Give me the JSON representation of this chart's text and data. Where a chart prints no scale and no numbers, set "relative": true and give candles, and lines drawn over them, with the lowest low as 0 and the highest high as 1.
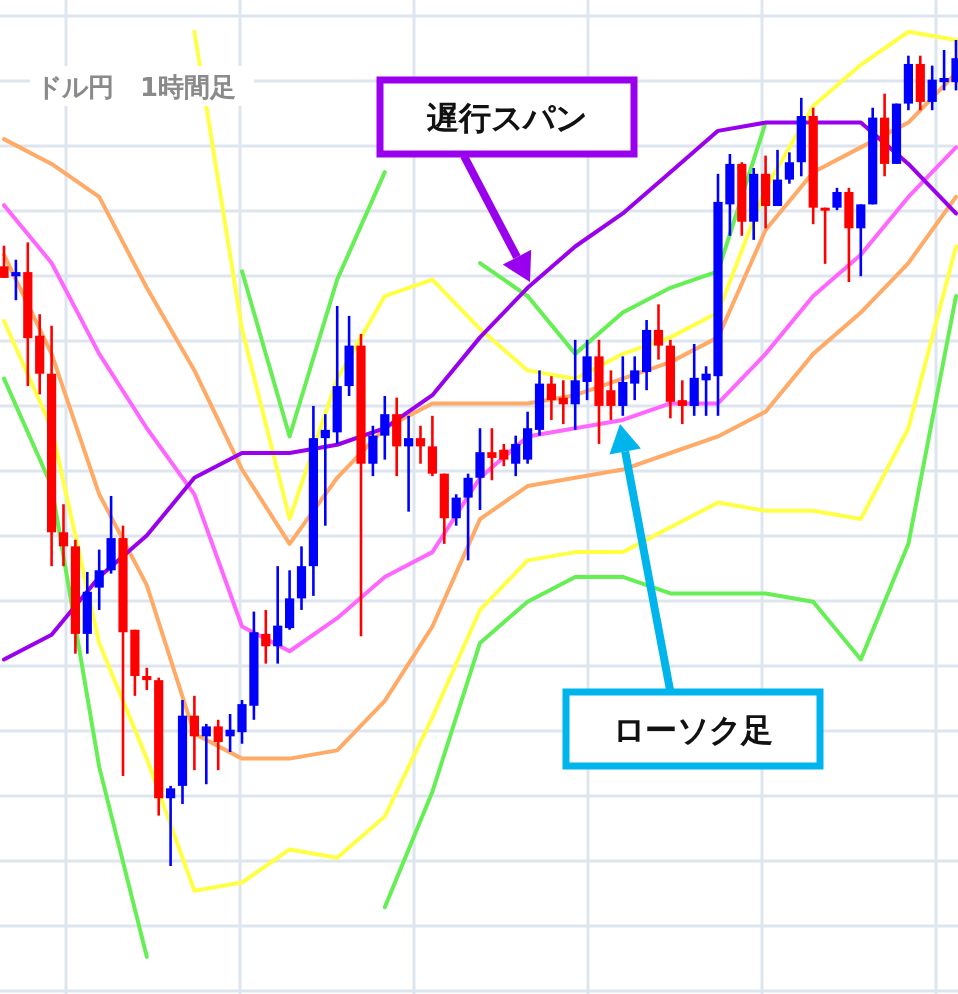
{
  "chart_data": {
    "type": "candlestick",
    "title": "ドル円　1時間足",
    "relative": true,
    "grid": true,
    "annotations": [
      "遅行スパン",
      "ローソク足"
    ],
    "categories": [
      null,
      null,
      null,
      null,
      null,
      null,
      null,
      null,
      null,
      null,
      null,
      null,
      null,
      null,
      null,
      null,
      null,
      null,
      null,
      null,
      null,
      null,
      null,
      null,
      null,
      null,
      null,
      null,
      null,
      null,
      null,
      null,
      null,
      null,
      null,
      null,
      null,
      null,
      null,
      null,
      null,
      null,
      null,
      null,
      null,
      null,
      null,
      null,
      null,
      null,
      null,
      null,
      null,
      null,
      null,
      null,
      null,
      null,
      null,
      null,
      null,
      null,
      null,
      null,
      null,
      null,
      null,
      null,
      null,
      null,
      null,
      null,
      null,
      null,
      null,
      null,
      null,
      null,
      null,
      null,
      null
    ],
    "ohlc": [
      [
        0.726,
        0.751,
        0.712,
        0.712
      ],
      [
        0.714,
        0.734,
        0.685,
        0.719
      ],
      [
        0.719,
        0.755,
        0.581,
        0.639
      ],
      [
        0.642,
        0.668,
        0.571,
        0.596
      ],
      [
        0.596,
        0.654,
        0.363,
        0.404
      ],
      [
        0.404,
        0.438,
        0.363,
        0.387
      ],
      [
        0.387,
        0.395,
        0.257,
        0.281
      ],
      [
        0.281,
        0.356,
        0.257,
        0.332
      ],
      [
        0.337,
        0.383,
        0.31,
        0.358
      ],
      [
        0.358,
        0.448,
        0.354,
        0.397
      ],
      [
        0.397,
        0.412,
        0.109,
        0.283
      ],
      [
        0.286,
        0.286,
        0.206,
        0.23
      ],
      [
        0.23,
        0.24,
        0.213,
        0.225
      ],
      [
        0.225,
        0.228,
        0.061,
        0.082
      ],
      [
        0.082,
        0.097,
        0,
        0.094
      ],
      [
        0.097,
        0.201,
        0.075,
        0.182
      ],
      [
        0.182,
        0.206,
        0.116,
        0.157
      ],
      [
        0.157,
        0.172,
        0.099,
        0.169
      ],
      [
        0.169,
        0.177,
        0.116,
        0.15
      ],
      [
        0.157,
        0.184,
        0.138,
        0.165
      ],
      [
        0.162,
        0.201,
        0.148,
        0.196
      ],
      [
        0.194,
        0.308,
        0.177,
        0.283
      ],
      [
        0.281,
        0.31,
        0.245,
        0.266
      ],
      [
        0.266,
        0.363,
        0.245,
        0.291
      ],
      [
        0.288,
        0.358,
        0.286,
        0.324
      ],
      [
        0.324,
        0.387,
        0.31,
        0.363
      ],
      [
        0.363,
        0.557,
        0.327,
        0.518
      ],
      [
        0.518,
        0.547,
        0.412,
        0.528
      ],
      [
        0.525,
        0.678,
        0.511,
        0.581
      ],
      [
        0.581,
        0.666,
        0.569,
        0.63
      ],
      [
        0.63,
        0.644,
        0.278,
        0.487
      ],
      [
        0.487,
        0.533,
        0.472,
        0.521
      ],
      [
        0.521,
        0.569,
        0.492,
        0.547
      ],
      [
        0.547,
        0.567,
        0.472,
        0.508
      ],
      [
        0.508,
        0.545,
        0.429,
        0.518
      ],
      [
        0.518,
        0.533,
        0.487,
        0.508
      ],
      [
        0.508,
        0.545,
        0.472,
        0.475
      ],
      [
        0.475,
        0.475,
        0.39,
        0.421
      ],
      [
        0.421,
        0.45,
        0.412,
        0.446
      ],
      [
        0.446,
        0.475,
        0.37,
        0.47
      ],
      [
        0.47,
        0.53,
        0.431,
        0.501
      ],
      [
        0.501,
        0.53,
        0.467,
        0.494
      ],
      [
        0.504,
        0.511,
        0.484,
        0.492
      ],
      [
        0.487,
        0.521,
        0.472,
        0.511
      ],
      [
        0.492,
        0.55,
        0.487,
        0.53
      ],
      [
        0.528,
        0.6,
        0.521,
        0.584
      ],
      [
        0.584,
        0.593,
        0.54,
        0.564
      ],
      [
        0.567,
        0.588,
        0.535,
        0.559
      ],
      [
        0.559,
        0.637,
        0.528,
        0.588
      ],
      [
        0.586,
        0.637,
        0.564,
        0.617
      ],
      [
        0.617,
        0.637,
        0.511,
        0.557
      ],
      [
        0.576,
        0.6,
        0.54,
        0.557
      ],
      [
        0.557,
        0.617,
        0.545,
        0.586
      ],
      [
        0.584,
        0.617,
        0.564,
        0.6
      ],
      [
        0.598,
        0.661,
        0.576,
        0.649
      ],
      [
        0.649,
        0.68,
        0.613,
        0.63
      ],
      [
        0.63,
        0.637,
        0.542,
        0.562
      ],
      [
        0.564,
        0.588,
        0.535,
        0.557
      ],
      [
        0.557,
        0.632,
        0.545,
        0.591
      ],
      [
        0.588,
        0.605,
        0.545,
        0.596
      ],
      [
        0.593,
        0.838,
        0.545,
        0.804
      ],
      [
        0.801,
        0.862,
        0.763,
        0.85
      ],
      [
        0.85,
        0.852,
        0.763,
        0.78
      ],
      [
        0.78,
        0.845,
        0.758,
        0.838
      ],
      [
        0.838,
        0.86,
        0.772,
        0.799
      ],
      [
        0.799,
        0.867,
        0.799,
        0.831
      ],
      [
        0.831,
        0.864,
        0.826,
        0.852
      ],
      [
        0.852,
        0.93,
        0.835,
        0.908
      ],
      [
        0.908,
        0.918,
        0.777,
        0.797
      ],
      [
        0.797,
        0.797,
        0.729,
        0.794
      ],
      [
        0.797,
        0.821,
        0.794,
        0.816
      ],
      [
        0.816,
        0.821,
        0.707,
        0.772
      ],
      [
        0.772,
        0.801,
        0.714,
        0.801
      ],
      [
        0.801,
        0.918,
        0.801,
        0.906
      ],
      [
        0.906,
        0.935,
        0.835,
        0.85
      ],
      [
        0.85,
        0.923,
        0.85,
        0.923
      ],
      [
        0.923,
        0.981,
        0.915,
        0.971
      ],
      [
        0.971,
        0.981,
        0.915,
        0.925
      ],
      [
        0.925,
        0.969,
        0.915,
        0.952
      ],
      [
        0.949,
        0.988,
        0.939,
        0.954
      ],
      [
        0.949,
        1,
        0.939,
        0.978
      ]
    ],
    "colors": [
      "#ff0000",
      "#0000ff",
      "#ff0000",
      "#ff0000",
      "#ff0000",
      "#ff0000",
      "#ff0000",
      "#0000ff",
      "#0000ff",
      "#0000ff",
      "#ff0000",
      "#ff0000",
      "#ff0000",
      "#ff0000",
      "#0000ff",
      "#0000ff",
      "#ff0000",
      "#0000ff",
      "#ff0000",
      "#0000ff",
      "#0000ff",
      "#0000ff",
      "#ff0000",
      "#0000ff",
      "#0000ff",
      "#0000ff",
      "#0000ff",
      "#0000ff",
      "#0000ff",
      "#0000ff",
      "#ff0000",
      "#0000ff",
      "#0000ff",
      "#ff0000",
      "#0000ff",
      "#ff0000",
      "#ff0000",
      "#ff0000",
      "#0000ff",
      "#0000ff",
      "#0000ff",
      "#ff0000",
      "#ff0000",
      "#0000ff",
      "#0000ff",
      "#0000ff",
      "#ff0000",
      "#ff0000",
      "#0000ff",
      "#0000ff",
      "#ff0000",
      "#ff0000",
      "#0000ff",
      "#0000ff",
      "#0000ff",
      "#ff0000",
      "#ff0000",
      "#ff0000",
      "#0000ff",
      "#0000ff",
      "#0000ff",
      "#0000ff",
      "#ff0000",
      "#0000ff",
      "#ff0000",
      "#0000ff",
      "#0000ff",
      "#0000ff",
      "#ff0000",
      "#ff0000",
      "#0000ff",
      "#ff0000",
      "#0000ff",
      "#0000ff",
      "#ff0000",
      "#0000ff",
      "#0000ff",
      "#ff0000",
      "#0000ff",
      "#0000ff",
      "#0000ff"
    ],
    "series": [
      {
        "type": "line",
        "color": "#66ee55",
        "values": [
          null,
          null,
          null,
          null,
          null,
          null,
          null,
          null,
          null,
          null,
          null,
          null,
          null,
          null,
          null,
          null,
          null,
          null,
          null,
          null,
          0.72,
          null,
          null,
          null,
          0.52,
          null,
          null,
          null,
          0.71,
          null,
          null,
          null,
          0.84,
          null,
          null,
          null,
          null,
          null,
          null,
          null,
          0.73,
          null,
          null,
          null,
          0.69,
          null,
          null,
          null,
          0.62,
          null,
          null,
          null,
          0.67,
          null,
          null,
          null,
          0.7,
          null,
          null,
          null,
          0.72,
          null,
          null,
          null,
          0.9,
          null,
          null,
          null,
          null,
          null,
          null,
          null,
          null,
          null,
          null,
          null,
          null,
          null,
          null,
          null,
          null
        ]
      },
      {
        "type": "line",
        "color": "#66ee55",
        "values": [
          0.59,
          null,
          null,
          null,
          0.46,
          null,
          null,
          null,
          0.12,
          null,
          null,
          null,
          -0.11,
          null,
          null,
          null,
          null,
          null,
          null,
          null,
          null,
          null,
          null,
          null,
          null,
          null,
          null,
          null,
          null,
          null,
          null,
          null,
          -0.05,
          null,
          null,
          null,
          0.09,
          null,
          null,
          null,
          0.27,
          null,
          null,
          null,
          0.32,
          null,
          null,
          null,
          0.35,
          null,
          null,
          null,
          0.35,
          null,
          null,
          null,
          0.33,
          null,
          null,
          null,
          0.33,
          null,
          null,
          null,
          0.33,
          null,
          null,
          null,
          0.32,
          null,
          null,
          null,
          0.25,
          null,
          null,
          null,
          0.39,
          null,
          null,
          null,
          0.69
        ]
      },
      {
        "type": "line",
        "color": "#ffff44",
        "values": [
          null,
          null,
          null,
          null,
          null,
          null,
          null,
          null,
          null,
          null,
          null,
          null,
          null,
          null,
          null,
          null,
          1.01,
          null,
          null,
          null,
          0.65,
          null,
          null,
          null,
          0.42,
          null,
          null,
          null,
          0.59,
          null,
          null,
          null,
          0.69,
          null,
          null,
          null,
          0.71,
          null,
          null,
          null,
          0.65,
          null,
          null,
          null,
          0.6,
          null,
          null,
          null,
          0.59,
          null,
          null,
          null,
          0.62,
          null,
          null,
          null,
          0.64,
          null,
          null,
          null,
          0.67,
          null,
          null,
          null,
          0.82,
          null,
          null,
          null,
          0.92,
          null,
          null,
          null,
          0.97,
          null,
          null,
          null,
          1.01,
          null,
          null,
          null,
          1.0
        ]
      },
      {
        "type": "line",
        "color": "#ffff44",
        "values": [
          0.66,
          null,
          null,
          null,
          0.53,
          null,
          null,
          null,
          0.27,
          null,
          null,
          null,
          0.13,
          null,
          null,
          null,
          -0.03,
          null,
          null,
          null,
          -0.02,
          null,
          null,
          null,
          0.02,
          null,
          null,
          null,
          0.01,
          null,
          null,
          null,
          0.06,
          null,
          null,
          null,
          0.18,
          null,
          null,
          null,
          0.31,
          null,
          null,
          null,
          0.37,
          null,
          null,
          null,
          0.38,
          null,
          null,
          null,
          0.38,
          null,
          null,
          null,
          0.41,
          null,
          null,
          null,
          0.44,
          null,
          null,
          null,
          0.43,
          null,
          null,
          null,
          0.43,
          null,
          null,
          null,
          0.42,
          null,
          null,
          null,
          0.53,
          null,
          null,
          null,
          0.75
        ]
      },
      {
        "type": "line",
        "color": "#ffaa66",
        "values": [
          0.88,
          null,
          null,
          null,
          0.85,
          null,
          null,
          null,
          0.81,
          null,
          null,
          null,
          0.7,
          null,
          null,
          null,
          0.6,
          null,
          null,
          null,
          0.48,
          null,
          null,
          null,
          0.39,
          null,
          null,
          null,
          0.47,
          null,
          null,
          null,
          0.53,
          null,
          null,
          null,
          0.56,
          null,
          null,
          null,
          0.56,
          null,
          null,
          null,
          0.56,
          null,
          null,
          null,
          0.57,
          null,
          null,
          null,
          0.59,
          null,
          null,
          null,
          0.61,
          null,
          null,
          null,
          0.64,
          null,
          null,
          null,
          0.77,
          null,
          null,
          null,
          0.84,
          null,
          null,
          null,
          0.87,
          null,
          null,
          null,
          0.9,
          null,
          null,
          null,
          0.96
        ]
      },
      {
        "type": "line",
        "color": "#ffaa66",
        "values": [
          0.74,
          null,
          null,
          null,
          0.62,
          null,
          null,
          null,
          0.45,
          null,
          null,
          null,
          0.34,
          null,
          null,
          null,
          0.16,
          null,
          null,
          null,
          0.13,
          null,
          null,
          null,
          0.13,
          null,
          null,
          null,
          0.14,
          null,
          null,
          null,
          0.2,
          null,
          null,
          null,
          0.29,
          null,
          null,
          null,
          0.42,
          null,
          null,
          null,
          0.46,
          null,
          null,
          null,
          0.47,
          null,
          null,
          null,
          0.48,
          null,
          null,
          null,
          0.5,
          null,
          null,
          null,
          0.52,
          null,
          null,
          null,
          0.55,
          null,
          null,
          null,
          0.62,
          null,
          null,
          null,
          0.67,
          null,
          null,
          null,
          0.73,
          null,
          null,
          null,
          0.81
        ]
      },
      {
        "type": "line",
        "color": "#ff66ff",
        "values": [
          0.8,
          null,
          null,
          null,
          0.73,
          null,
          null,
          null,
          0.62,
          null,
          null,
          null,
          0.53,
          null,
          null,
          null,
          0.45,
          null,
          null,
          null,
          0.29,
          null,
          null,
          null,
          0.26,
          null,
          null,
          null,
          0.3,
          null,
          null,
          null,
          0.35,
          null,
          null,
          null,
          0.38,
          null,
          null,
          null,
          0.47,
          null,
          null,
          null,
          0.52,
          null,
          null,
          null,
          0.53,
          null,
          null,
          null,
          0.54,
          null,
          null,
          null,
          0.56,
          null,
          null,
          null,
          0.56,
          null,
          null,
          null,
          0.62,
          null,
          null,
          null,
          0.69,
          null,
          null,
          null,
          0.74,
          null,
          null,
          null,
          0.81,
          null,
          null,
          null,
          0.87
        ]
      },
      {
        "type": "line",
        "color": "#9900ee",
        "values": [
          0.25,
          null,
          null,
          null,
          0.28,
          null,
          null,
          null,
          0.35,
          null,
          null,
          null,
          0.4,
          null,
          null,
          null,
          0.47,
          null,
          null,
          null,
          0.5,
          null,
          null,
          null,
          0.5,
          null,
          null,
          null,
          0.51,
          null,
          null,
          null,
          0.53,
          null,
          null,
          null,
          0.57,
          null,
          null,
          null,
          0.64,
          null,
          null,
          null,
          0.7,
          null,
          null,
          null,
          0.75,
          null,
          null,
          null,
          0.79,
          null,
          null,
          null,
          0.84,
          null,
          null,
          null,
          0.89,
          null,
          null,
          null,
          0.9,
          null,
          null,
          null,
          0.9,
          null,
          null,
          null,
          0.9,
          null,
          null,
          null,
          0.85,
          null,
          null,
          null,
          0.79
        ]
      }
    ]
  }
}
